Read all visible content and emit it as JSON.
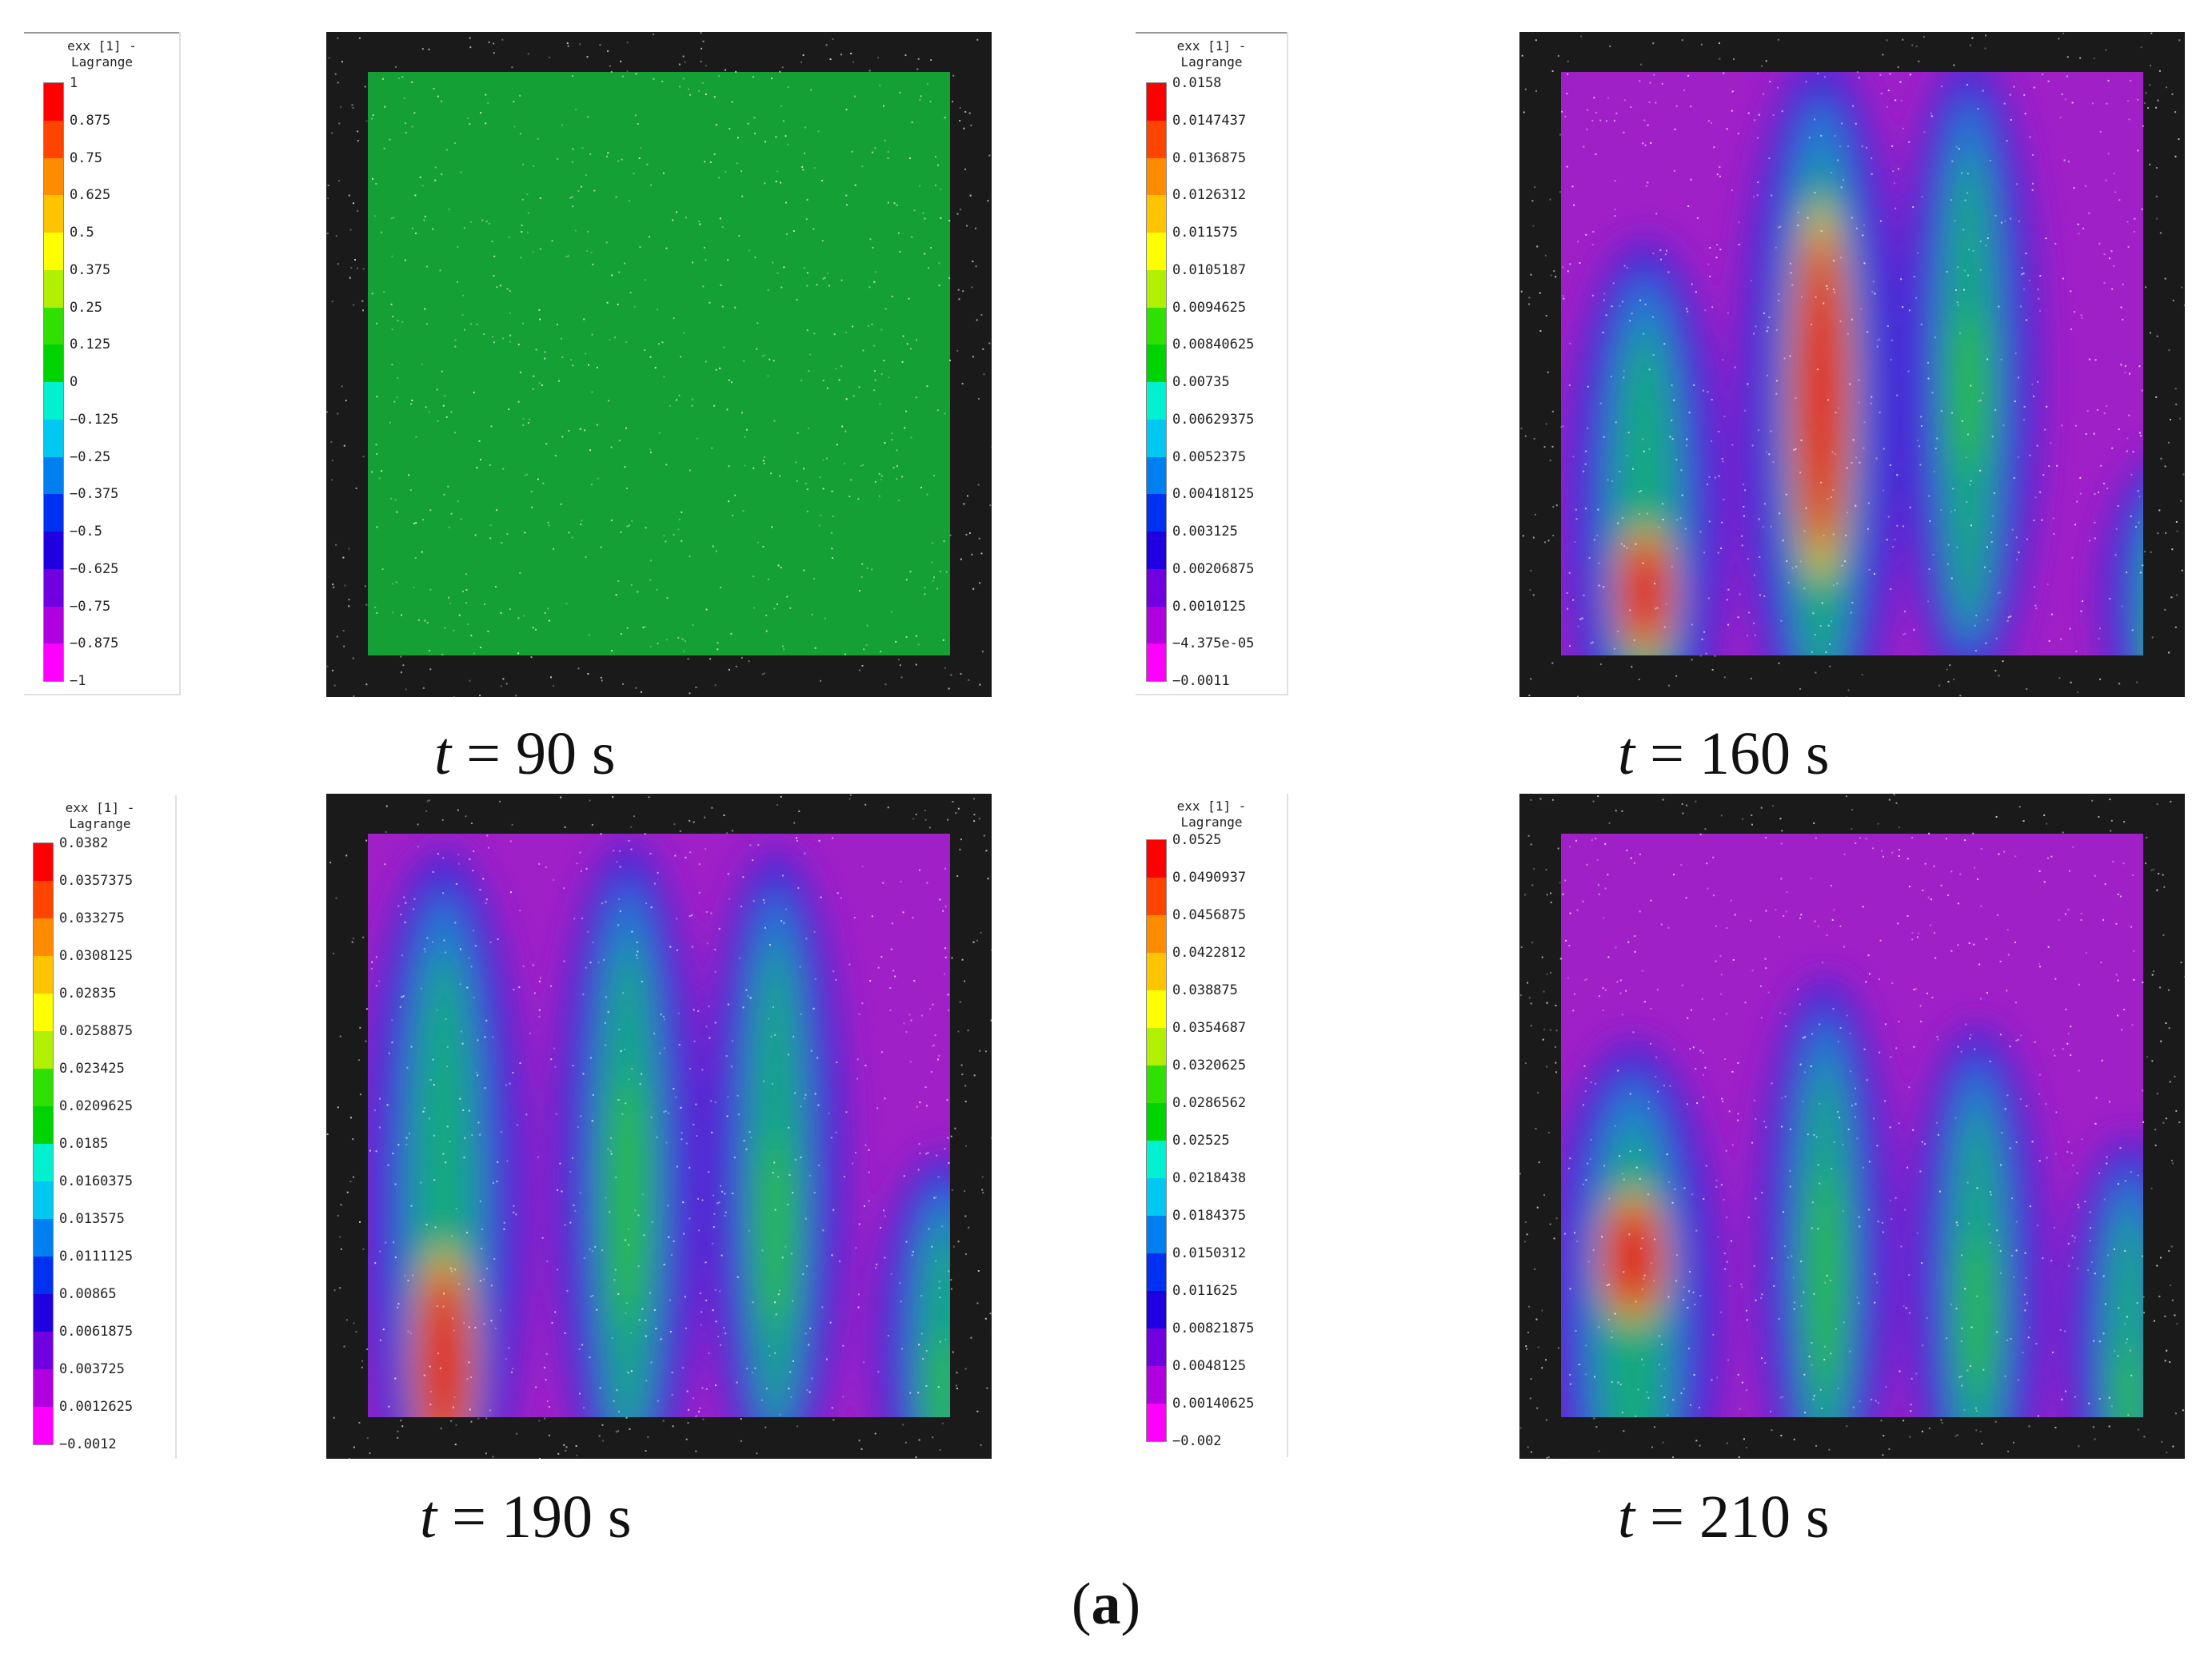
{
  "panels": [
    {
      "id": "p90",
      "time": "90 s",
      "legend_title": [
        "exx [1] -",
        "Lagrange"
      ],
      "ticks": [
        "1",
        "0.875",
        "0.75",
        "0.625",
        "0.5",
        "0.375",
        "0.25",
        "0.125",
        "0",
        "-0.125",
        "-0.25",
        "-0.375",
        "-0.5",
        "-0.625",
        "-0.75",
        "-0.875",
        "-1"
      ],
      "field": "uniform"
    },
    {
      "id": "p160",
      "time": "160 s",
      "legend_title": [
        "exx [1] -",
        "Lagrange"
      ],
      "ticks": [
        "0.0158",
        "0.0147437",
        "0.0136875",
        "0.0126312",
        "0.011575",
        "0.0105187",
        "0.0094625",
        "0.00840625",
        "0.00735",
        "0.00629375",
        "0.0052375",
        "0.00418125",
        "0.003125",
        "0.00206875",
        "0.0010125",
        "-4.375e-05",
        "-0.0011"
      ],
      "field": "bands"
    },
    {
      "id": "p190",
      "time": "190 s",
      "legend_title": [
        "exx [1] -",
        "Lagrange"
      ],
      "ticks": [
        "0.0382",
        "0.0357375",
        "0.033275",
        "0.0308125",
        "0.02835",
        "0.0258875",
        "0.023425",
        "0.0209625",
        "0.0185",
        "0.0160375",
        "0.013575",
        "0.0111125",
        "0.00865",
        "0.0061875",
        "0.003725",
        "0.0012625",
        "-0.0012"
      ],
      "field": "bands"
    },
    {
      "id": "p210",
      "time": "210 s",
      "legend_title": [
        "exx [1] -",
        "Lagrange"
      ],
      "ticks": [
        "0.0525",
        "0.0490937",
        "0.0456875",
        "0.0422812",
        "0.038875",
        "0.0354687",
        "0.0320625",
        "0.0286562",
        "0.02525",
        "0.0218438",
        "0.0184375",
        "0.0150312",
        "0.011625",
        "0.00821875",
        "0.0048125",
        "0.00140625",
        "-0.002"
      ],
      "field": "bands"
    }
  ],
  "t_symbol": "t",
  "equals": "=",
  "caption": {
    "open": "(",
    "letter": "a",
    "close": ")"
  },
  "colormap": [
    "#ff0000",
    "#ff4400",
    "#ff8c00",
    "#ffc400",
    "#ffff00",
    "#b0f000",
    "#30e000",
    "#00d400",
    "#00e080",
    "#00f0d0",
    "#00c8f0",
    "#0080f0",
    "#0030f0",
    "#2000e0",
    "#7000e0",
    "#b000e0",
    "#ff00ff"
  ],
  "colors": {
    "uniform_field": "#14a034",
    "background_frame": "#1a1a1a",
    "low_strain": "#a020c8",
    "high_strain": "#e01010"
  }
}
